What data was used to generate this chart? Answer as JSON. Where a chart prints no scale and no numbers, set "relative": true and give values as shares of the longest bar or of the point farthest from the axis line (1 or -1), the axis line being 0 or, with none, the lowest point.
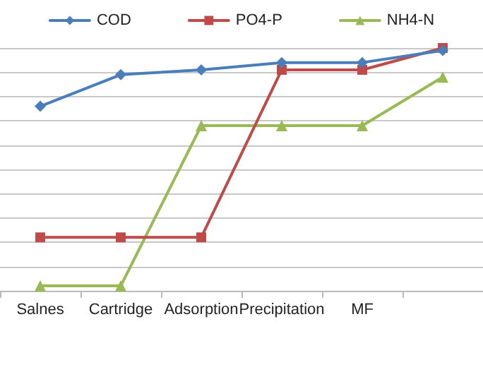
{
  "chart_data": {
    "type": "line",
    "relative": true,
    "categories": [
      "Salnes",
      "Cartridge",
      "Adsorption",
      "Precipitation",
      "MF",
      null
    ],
    "series": [
      {
        "name": "COD",
        "color": "#4a7ebb",
        "marker": "diamond",
        "values": [
          0.76,
          0.89,
          0.91,
          0.94,
          0.94,
          0.99
        ]
      },
      {
        "name": "PO4-P",
        "color": "#be4b48",
        "marker": "square",
        "values": [
          0.22,
          0.22,
          0.22,
          0.91,
          0.91,
          1
        ]
      },
      {
        "name": "NH4-N",
        "color": "#98b954",
        "marker": "triangle",
        "values": [
          0.02,
          0.02,
          0.68,
          0.68,
          0.68,
          0.88
        ]
      }
    ],
    "grid": "y",
    "legend": "top",
    "line_style": "solid"
  }
}
